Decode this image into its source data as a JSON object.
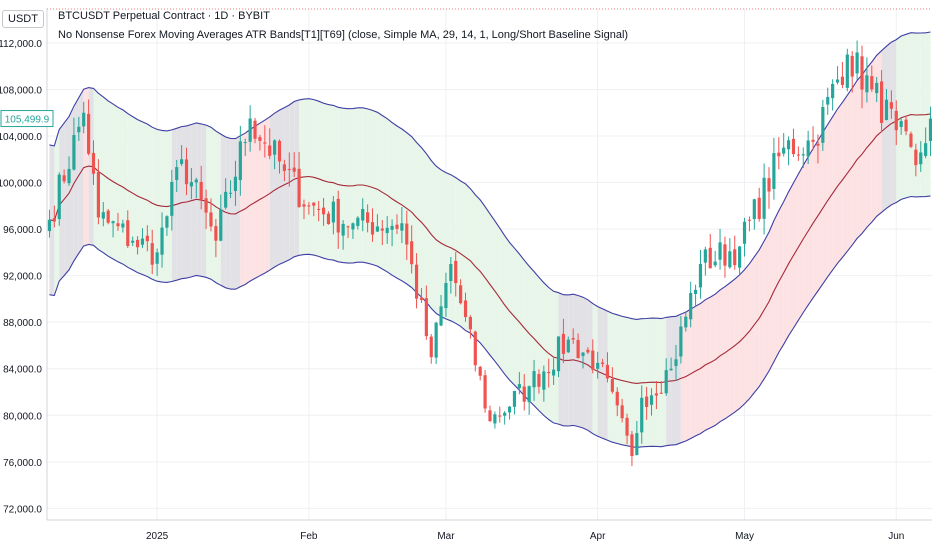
{
  "header": {
    "currency": "USDT",
    "title": "BTCUSDT Perpetual Contract · 1D · BYBIT",
    "indicator": "No Nonsense Forex Moving Averages ATR Bands[T1][T69] (close, Simple MA, 29, 14, 1, Long/Short Baseline Signal)"
  },
  "colors": {
    "up": "#26a69a",
    "down": "#ef5350",
    "band_line": "#3f3fa5",
    "baseline": "#a52a3a",
    "zone_long": "#e8f5e9",
    "zone_short": "#fde2e4",
    "zone_neutral": "#e2e2e6",
    "price_tag": "#26a69a"
  },
  "chart_data": {
    "type": "candlestick",
    "title": "BTCUSDT Perpetual Contract · 1D · BYBIT",
    "y_axis": {
      "min": 71000,
      "max": 115000,
      "ticks": [
        "72,000.0",
        "76,000.0",
        "80,000.0",
        "84,000.0",
        "88,000.0",
        "92,000.0",
        "96,000.0",
        "100,000.0",
        "104,000.0",
        "108,000.0",
        "112,000.0"
      ],
      "tick_values": [
        72000,
        76000,
        80000,
        84000,
        88000,
        92000,
        96000,
        100000,
        104000,
        108000,
        112000
      ]
    },
    "x_axis": {
      "start": "2024-12-10",
      "end": "2025-06-08",
      "ticks": [
        {
          "label": "2025",
          "date": "2025-01-01"
        },
        {
          "label": "Feb",
          "date": "2025-02-01"
        },
        {
          "label": "Mar",
          "date": "2025-03-01"
        },
        {
          "label": "Apr",
          "date": "2025-04-01"
        },
        {
          "label": "May",
          "date": "2025-05-01"
        },
        {
          "label": "Jun",
          "date": "2025-06-01"
        }
      ]
    },
    "last_price": "105,499.9",
    "closes": [
      {
        "date": "2024-12-10",
        "close": 96800
      },
      {
        "date": "2024-12-17",
        "close": 106000
      },
      {
        "date": "2024-12-20",
        "close": 97000
      },
      {
        "date": "2024-12-27",
        "close": 95000
      },
      {
        "date": "2025-01-01",
        "close": 94000
      },
      {
        "date": "2025-01-06",
        "close": 102000
      },
      {
        "date": "2025-01-13",
        "close": 95000
      },
      {
        "date": "2025-01-20",
        "close": 105500
      },
      {
        "date": "2025-01-27",
        "close": 101000
      },
      {
        "date": "2025-02-01",
        "close": 98000
      },
      {
        "date": "2025-02-10",
        "close": 96500
      },
      {
        "date": "2025-02-20",
        "close": 96500
      },
      {
        "date": "2025-02-26",
        "close": 85000
      },
      {
        "date": "2025-03-02",
        "close": 93000
      },
      {
        "date": "2025-03-10",
        "close": 79500
      },
      {
        "date": "2025-03-18",
        "close": 82500
      },
      {
        "date": "2025-03-26",
        "close": 86500
      },
      {
        "date": "2025-04-01",
        "close": 84500
      },
      {
        "date": "2025-04-08",
        "close": 76500
      },
      {
        "date": "2025-04-10",
        "close": 81500
      },
      {
        "date": "2025-04-16",
        "close": 84000
      },
      {
        "date": "2025-04-22",
        "close": 93000
      },
      {
        "date": "2025-04-30",
        "close": 94500
      },
      {
        "date": "2025-05-09",
        "close": 103000
      },
      {
        "date": "2025-05-15",
        "close": 103500
      },
      {
        "date": "2025-05-22",
        "close": 111000
      },
      {
        "date": "2025-05-27",
        "close": 108000
      },
      {
        "date": "2025-06-01",
        "close": 104500
      },
      {
        "date": "2025-06-05",
        "close": 101500
      },
      {
        "date": "2025-06-08",
        "close": 105500
      }
    ]
  }
}
